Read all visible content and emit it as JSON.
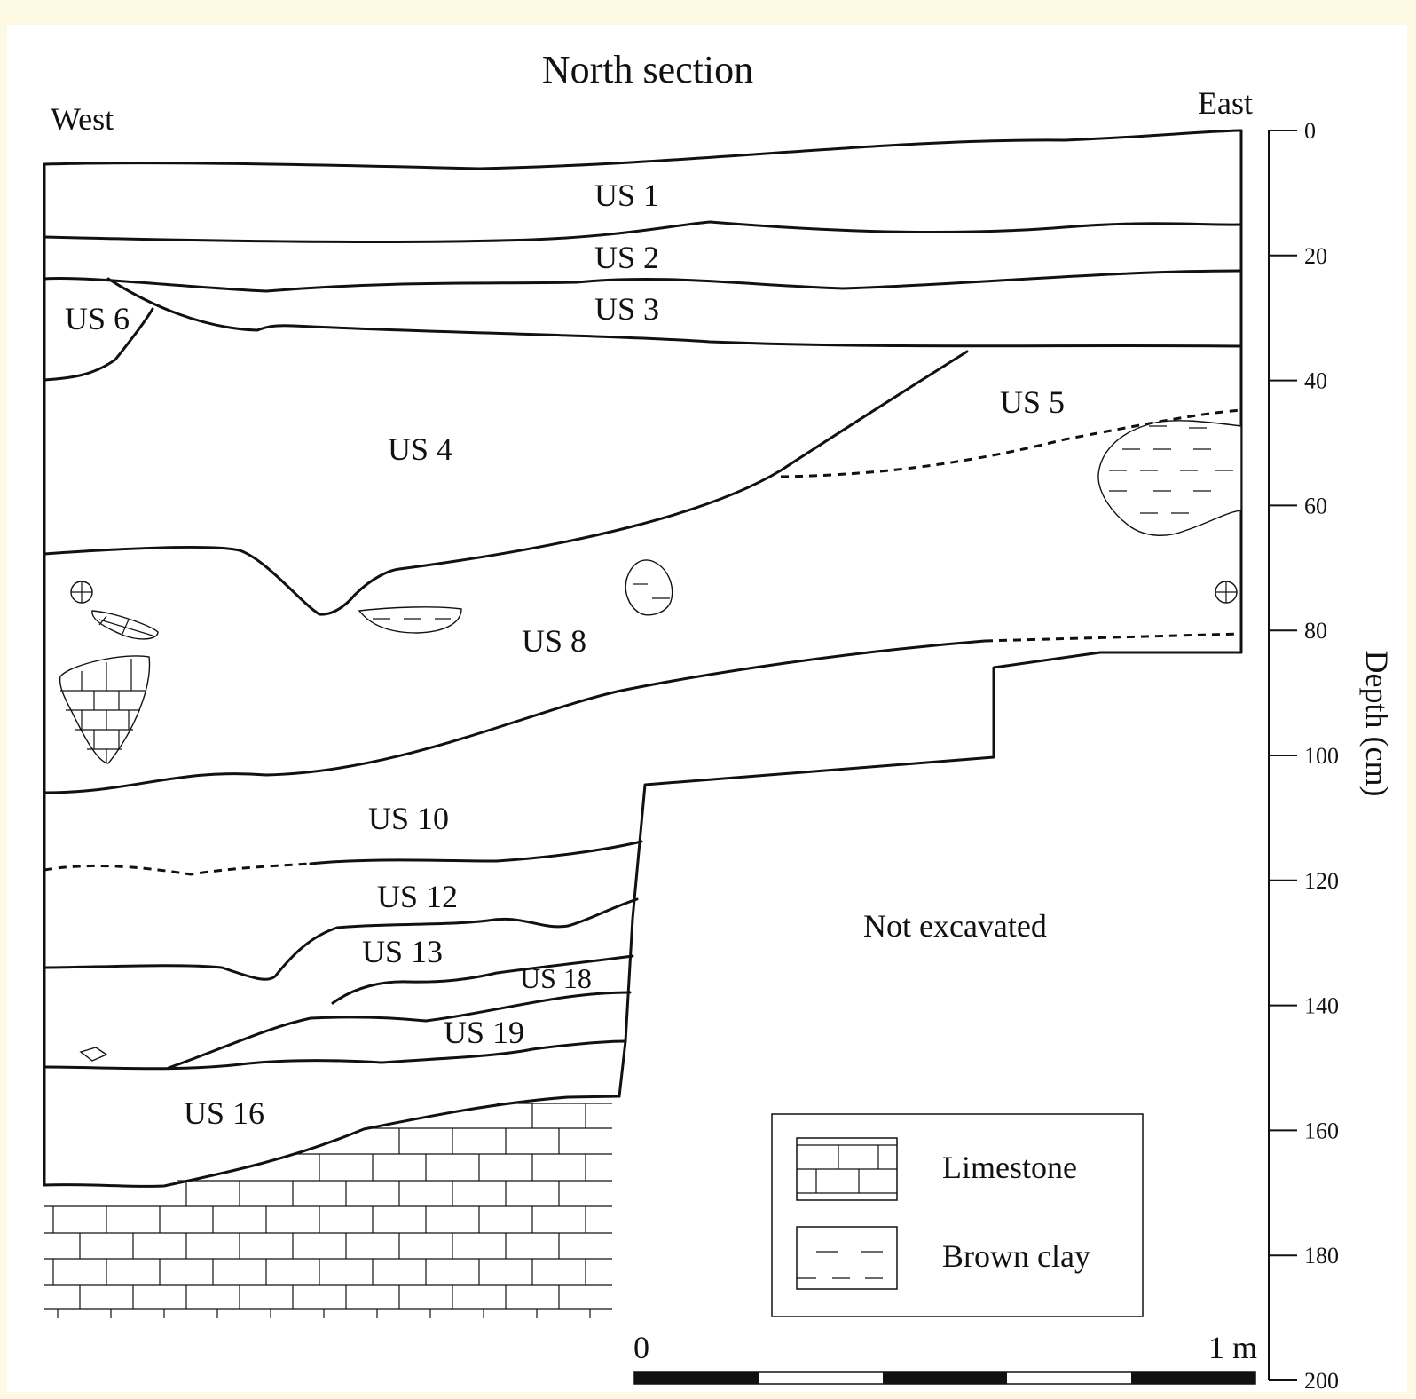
{
  "title": "North section",
  "orientation": {
    "left": "West",
    "right": "East"
  },
  "depth_axis": {
    "label": "Depth (cm)",
    "unit": "cm",
    "ticks": [
      "0",
      "20",
      "40",
      "60",
      "80",
      "100",
      "120",
      "140",
      "160",
      "180",
      "200"
    ]
  },
  "units": [
    {
      "id": "us1",
      "label": "US 1"
    },
    {
      "id": "us2",
      "label": "US 2"
    },
    {
      "id": "us3",
      "label": "US 3"
    },
    {
      "id": "us4",
      "label": "US 4"
    },
    {
      "id": "us5",
      "label": "US 5"
    },
    {
      "id": "us6",
      "label": "US 6"
    },
    {
      "id": "us8",
      "label": "US 8"
    },
    {
      "id": "us10",
      "label": "US 10"
    },
    {
      "id": "us12",
      "label": "US 12"
    },
    {
      "id": "us13",
      "label": "US 13"
    },
    {
      "id": "us16",
      "label": "US 16"
    },
    {
      "id": "us18",
      "label": "US 18"
    },
    {
      "id": "us19",
      "label": "US 19"
    }
  ],
  "not_excavated": "Not excavated",
  "legend": {
    "limestone": "Limestone",
    "brown_clay": "Brown clay"
  },
  "scale_bar": {
    "start": "0",
    "end": "1 m"
  }
}
